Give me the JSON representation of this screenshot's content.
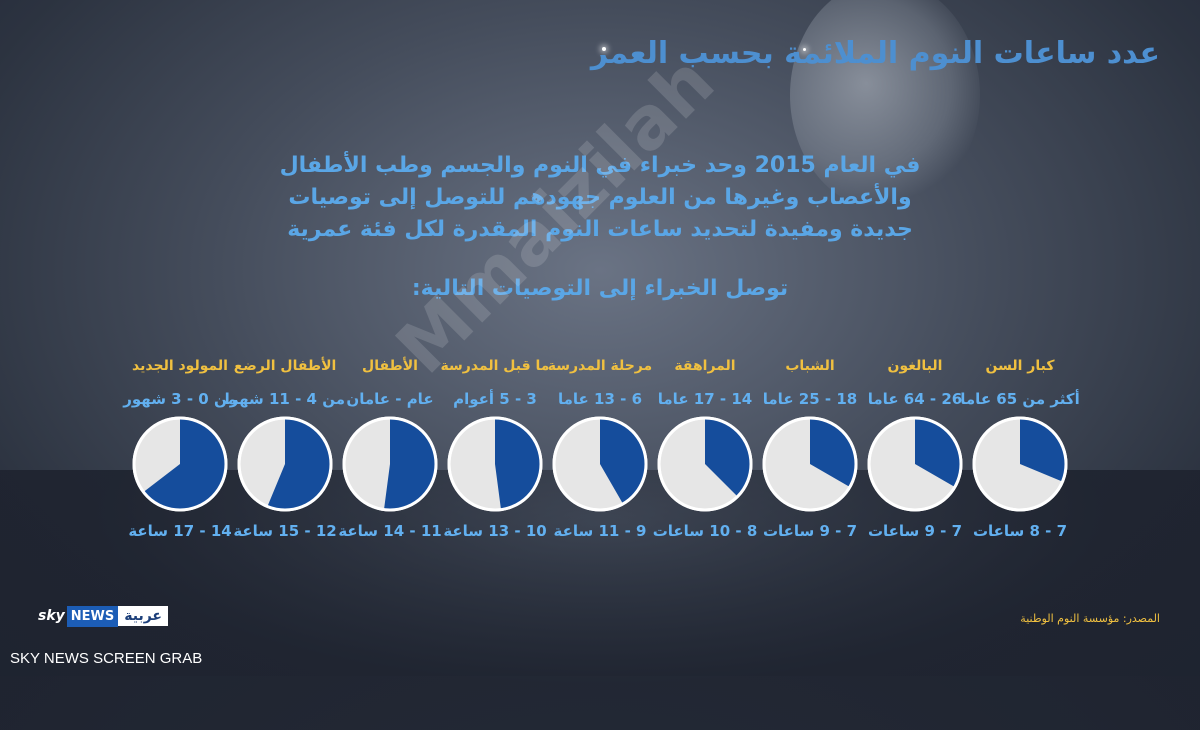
{
  "header": {
    "title": "عدد ساعات النوم الملائمة بحسب العمر"
  },
  "intro": {
    "line1": "في العام 2015 وحد خبراء في النوم والجسم وطب الأطفال",
    "line2": "والأعصاب وغيرها من العلوم جهودهم للتوصل إلى توصيات",
    "line3": "جديدة ومفيدة لتحديد ساعات النوم المقدرة لكل فئة عمرية"
  },
  "subtitle": "توصل الخبراء إلى التوصيات التالية:",
  "watermark": "Mmaizilah",
  "chart_data": {
    "type": "pie",
    "categories": [
      "كبار السن",
      "البالغون",
      "الشباب",
      "المراهقة",
      "مرحلة المدرسة",
      "ما قبل المدرسة",
      "الأطفال",
      "الأطفال الرضع",
      "المولود الجديد"
    ],
    "ages": [
      "أكثر من 65 عاما",
      "26 - 64 عاما",
      "18 - 25 عاما",
      "14 - 17 عاما",
      "6 - 13 عاما",
      "3 - 5 أعوام",
      "عام - عامان",
      "من 4 - 11 شهرا",
      "من 0 - 3 شهور"
    ],
    "hours_labels": [
      "7 - 8 ساعات",
      "7 - 9 ساعات",
      "7 - 9 ساعات",
      "8 - 10 ساعات",
      "9 - 11 ساعة",
      "10 - 13 ساعة",
      "11 - 14 ساعة",
      "12 - 15 ساعة",
      "14 - 17 ساعة"
    ],
    "values": [
      7.5,
      8,
      8,
      9,
      10,
      11.5,
      12.5,
      13.5,
      15.5
    ],
    "total": 24,
    "colors": {
      "filled": "#154d9c",
      "empty": "#e6e6e6",
      "stroke": "#ffffff"
    }
  },
  "footer": {
    "source": "المصدر: مؤسسة النوم الوطنية",
    "logo_sky": "sky",
    "logo_news": "NEWS",
    "logo_arabic": "عربية",
    "screen_grab": "SKY NEWS SCREEN GRAB"
  }
}
